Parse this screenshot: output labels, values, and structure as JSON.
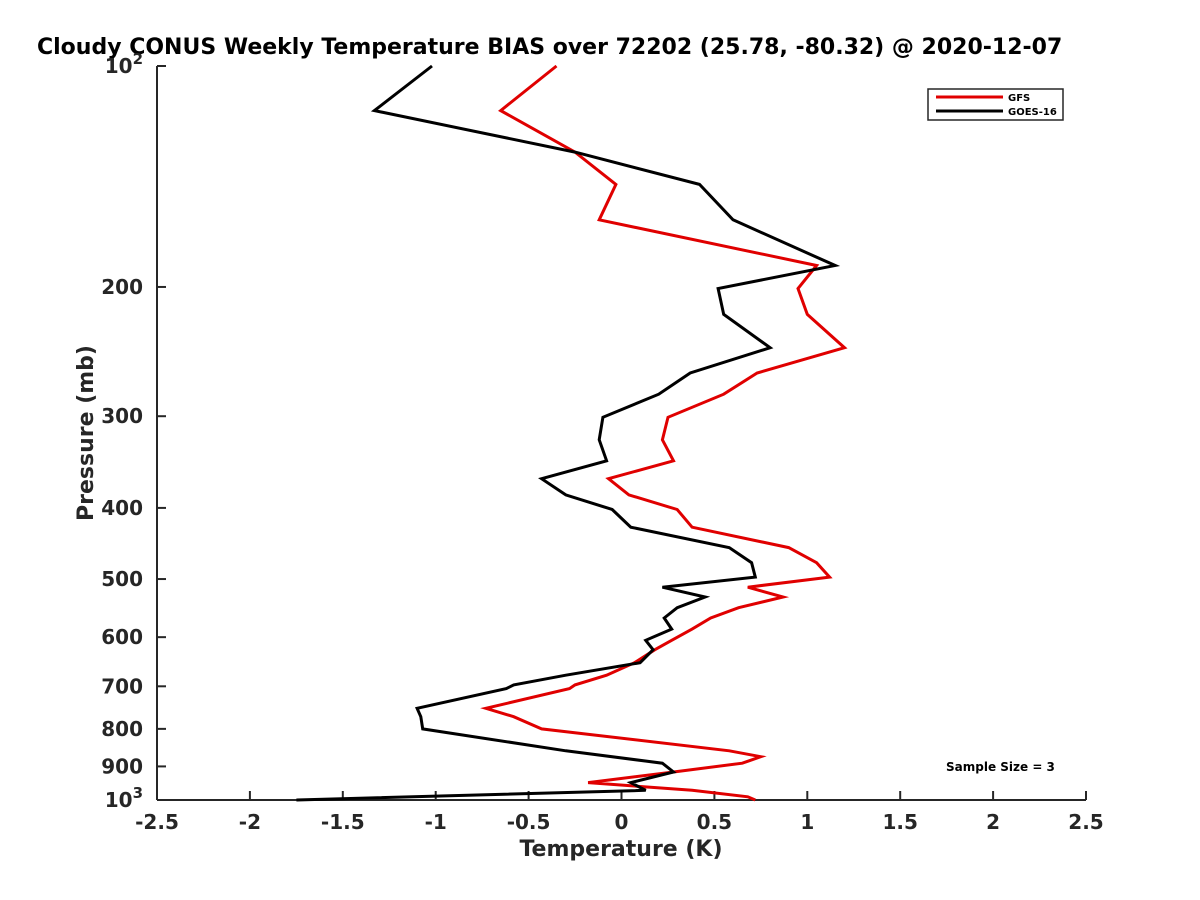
{
  "chart_data": {
    "type": "line",
    "title": "Cloudy CONUS Weekly Temperature BIAS over 72202 (25.78, -80.32) @ 2020-12-07",
    "xlabel": "Temperature (K)",
    "ylabel": "Pressure (mb)",
    "xlim": [
      -2.5,
      2.5
    ],
    "ylim": [
      1000,
      100
    ],
    "y_scale": "log",
    "y_direction": "reversed",
    "grid": false,
    "legend_position": "top-right",
    "x_ticks": [
      -2.5,
      -2,
      -1.5,
      -1,
      -0.5,
      0,
      0.5,
      1,
      1.5,
      2,
      2.5
    ],
    "x_tick_labels": [
      "-2.5",
      "-2",
      "-1.5",
      "-1",
      "-0.5",
      "0",
      "0.5",
      "1",
      "1.5",
      "2",
      "2.5"
    ],
    "y_ticks": [
      100,
      200,
      300,
      400,
      500,
      600,
      700,
      800,
      900,
      1000
    ],
    "y_tick_labels": [
      {
        "base": "10",
        "exp": "2"
      },
      {
        "base": "200",
        "exp": ""
      },
      {
        "base": "300",
        "exp": ""
      },
      {
        "base": "400",
        "exp": ""
      },
      {
        "base": "500",
        "exp": ""
      },
      {
        "base": "600",
        "exp": ""
      },
      {
        "base": "700",
        "exp": ""
      },
      {
        "base": "800",
        "exp": ""
      },
      {
        "base": "900",
        "exp": ""
      },
      {
        "base": "10",
        "exp": "3"
      }
    ],
    "annotation": "Sample Size = 3",
    "series": [
      {
        "name": "GFS",
        "color": "#e00000",
        "points": [
          [
            -0.35,
            100
          ],
          [
            -0.65,
            115
          ],
          [
            -0.25,
            131
          ],
          [
            -0.03,
            145
          ],
          [
            -0.12,
            162
          ],
          [
            1.05,
            187
          ],
          [
            0.95,
            201
          ],
          [
            1.0,
            218
          ],
          [
            1.2,
            242
          ],
          [
            0.73,
            262
          ],
          [
            0.55,
            280
          ],
          [
            0.25,
            301
          ],
          [
            0.22,
            323
          ],
          [
            0.28,
            345
          ],
          [
            -0.07,
            365
          ],
          [
            0.04,
            384
          ],
          [
            0.3,
            402
          ],
          [
            0.38,
            425
          ],
          [
            0.9,
            453
          ],
          [
            1.05,
            475
          ],
          [
            1.12,
            497
          ],
          [
            0.68,
            513
          ],
          [
            0.87,
            529
          ],
          [
            0.63,
            547
          ],
          [
            0.48,
            565
          ],
          [
            0.38,
            585
          ],
          [
            0.27,
            606
          ],
          [
            0.18,
            624
          ],
          [
            0.07,
            650
          ],
          [
            -0.08,
            676
          ],
          [
            -0.25,
            697
          ],
          [
            -0.28,
            705
          ],
          [
            -0.73,
            750
          ],
          [
            -0.58,
            770
          ],
          [
            -0.43,
            800
          ],
          [
            0.58,
            857
          ],
          [
            0.75,
            873
          ],
          [
            0.65,
            891
          ],
          [
            0.28,
            916
          ],
          [
            -0.18,
            947
          ],
          [
            0.38,
            970
          ],
          [
            0.68,
            990
          ],
          [
            0.72,
            1000
          ]
        ]
      },
      {
        "name": "GOES-16",
        "color": "#000000",
        "points": [
          [
            -1.02,
            100
          ],
          [
            -1.33,
            115
          ],
          [
            -0.25,
            131
          ],
          [
            0.42,
            145
          ],
          [
            0.6,
            162
          ],
          [
            1.15,
            187
          ],
          [
            0.52,
            201
          ],
          [
            0.55,
            218
          ],
          [
            0.8,
            242
          ],
          [
            0.37,
            262
          ],
          [
            0.2,
            280
          ],
          [
            -0.1,
            301
          ],
          [
            -0.12,
            323
          ],
          [
            -0.08,
            345
          ],
          [
            -0.43,
            365
          ],
          [
            -0.3,
            384
          ],
          [
            -0.05,
            402
          ],
          [
            0.05,
            425
          ],
          [
            0.58,
            453
          ],
          [
            0.7,
            475
          ],
          [
            0.72,
            497
          ],
          [
            0.22,
            513
          ],
          [
            0.45,
            529
          ],
          [
            0.3,
            547
          ],
          [
            0.23,
            565
          ],
          [
            0.27,
            585
          ],
          [
            0.13,
            606
          ],
          [
            0.17,
            624
          ],
          [
            0.1,
            650
          ],
          [
            -0.3,
            676
          ],
          [
            -0.58,
            697
          ],
          [
            -0.62,
            705
          ],
          [
            -1.1,
            750
          ],
          [
            -1.08,
            770
          ],
          [
            -1.07,
            800
          ],
          [
            -0.3,
            857
          ],
          [
            0.22,
            891
          ],
          [
            0.28,
            916
          ],
          [
            0.05,
            947
          ],
          [
            0.13,
            970
          ],
          [
            -1.75,
            1000
          ]
        ]
      }
    ]
  }
}
